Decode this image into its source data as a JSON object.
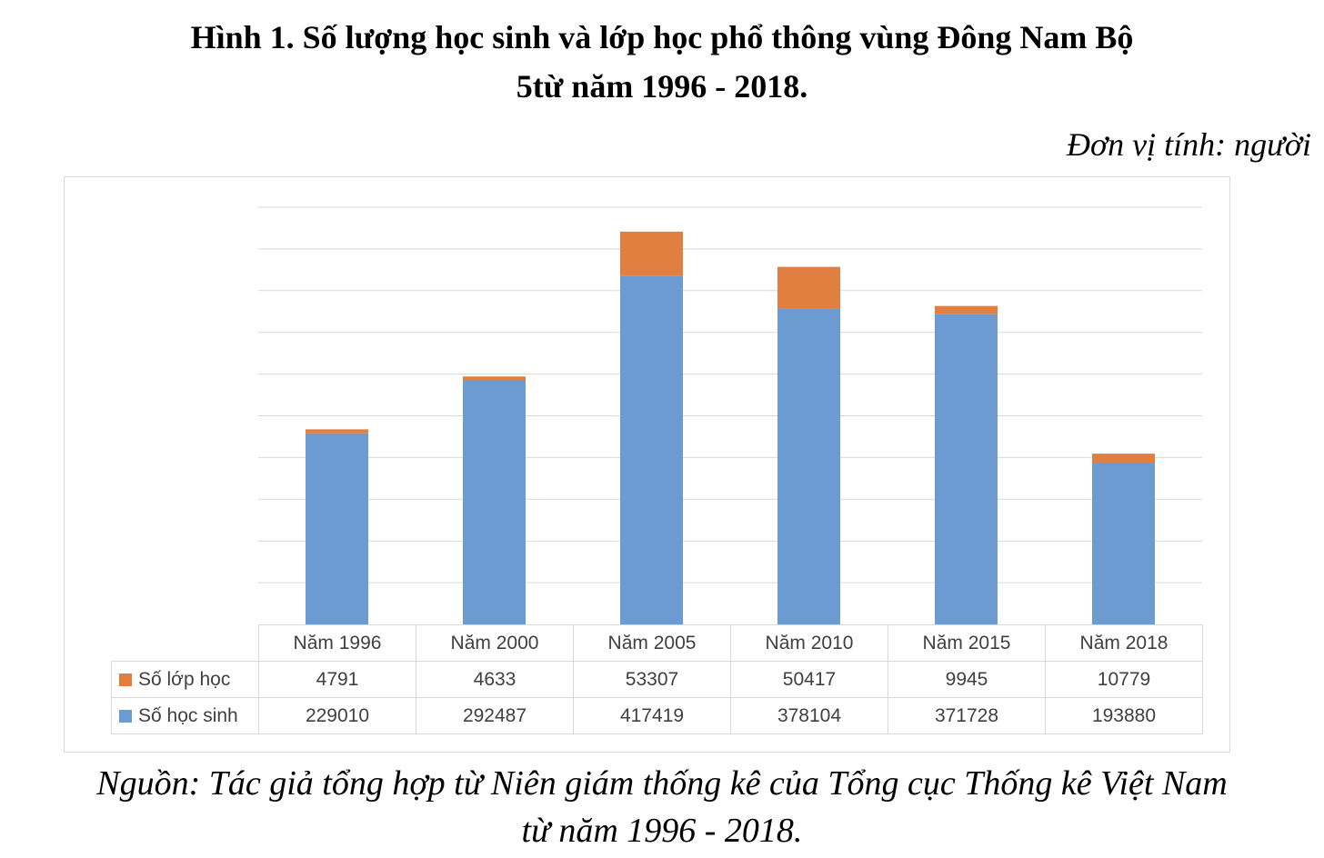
{
  "title_line1": "Hình 1. Số lượng học sinh và lớp học phổ thông vùng Đông Nam Bộ",
  "title_line2": "5từ năm 1996 - 2018.",
  "unit_label": "Đơn vị tính: người",
  "source_line1": "Nguồn: Tác giả tổng hợp từ Niên giám thống kê của Tổng cục Thống kê Việt Nam",
  "source_line2": "từ năm 1996 - 2018.",
  "chart_data": {
    "type": "bar",
    "stacked": true,
    "categories": [
      "Năm 1996",
      "Năm 2000",
      "Năm 2005",
      "Năm 2010",
      "Năm 2015",
      "Năm 2018"
    ],
    "series": [
      {
        "name": "Số học sinh",
        "color": "#6b9bd1",
        "values": [
          229010,
          292487,
          417419,
          378104,
          371728,
          193880
        ]
      },
      {
        "name": "Số lớp học",
        "color": "#e07f3f",
        "values": [
          4791,
          4633,
          53307,
          50417,
          9945,
          10779
        ]
      }
    ],
    "ylim": [
      0,
      500000
    ],
    "y_gridline_step": 50000,
    "grid": true,
    "y_tick_labels_shown": false,
    "legend_placement": "data-table"
  }
}
